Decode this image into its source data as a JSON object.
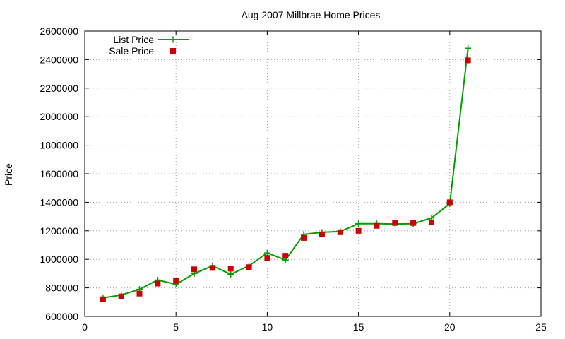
{
  "chart_data": {
    "type": "line",
    "title": "Aug 2007 Millbrae Home Prices",
    "xlabel": "",
    "ylabel": "Price",
    "xlim": [
      0,
      25
    ],
    "ylim": [
      600000,
      2600000
    ],
    "x_ticks": [
      0,
      5,
      10,
      15,
      20,
      25
    ],
    "y_ticks": [
      600000,
      800000,
      1000000,
      1200000,
      1400000,
      1600000,
      1800000,
      2000000,
      2200000,
      2400000,
      2600000
    ],
    "grid": true,
    "legend_position": "top-left",
    "series": [
      {
        "name": "List Price",
        "style": "linespoints",
        "marker": "plus",
        "color": "#00a000",
        "x": [
          1,
          2,
          3,
          4,
          5,
          6,
          7,
          8,
          9,
          10,
          11,
          12,
          13,
          14,
          15,
          16,
          17,
          18,
          19,
          20,
          21
        ],
        "y": [
          730000,
          750000,
          790000,
          855000,
          825000,
          900000,
          955000,
          895000,
          955000,
          1045000,
          995000,
          1175000,
          1190000,
          1195000,
          1250000,
          1250000,
          1248000,
          1250000,
          1290000,
          1390000,
          2480000
        ]
      },
      {
        "name": "Sale Price",
        "style": "points",
        "marker": "square",
        "color": "#cc0000",
        "x": [
          1,
          2,
          3,
          4,
          5,
          6,
          7,
          8,
          9,
          10,
          11,
          12,
          13,
          14,
          15,
          16,
          17,
          18,
          19,
          20,
          21
        ],
        "y": [
          720000,
          740000,
          760000,
          830000,
          850000,
          930000,
          940000,
          935000,
          945000,
          1010000,
          1025000,
          1150000,
          1175000,
          1190000,
          1200000,
          1235000,
          1255000,
          1255000,
          1260000,
          1400000,
          2395000
        ]
      }
    ]
  }
}
